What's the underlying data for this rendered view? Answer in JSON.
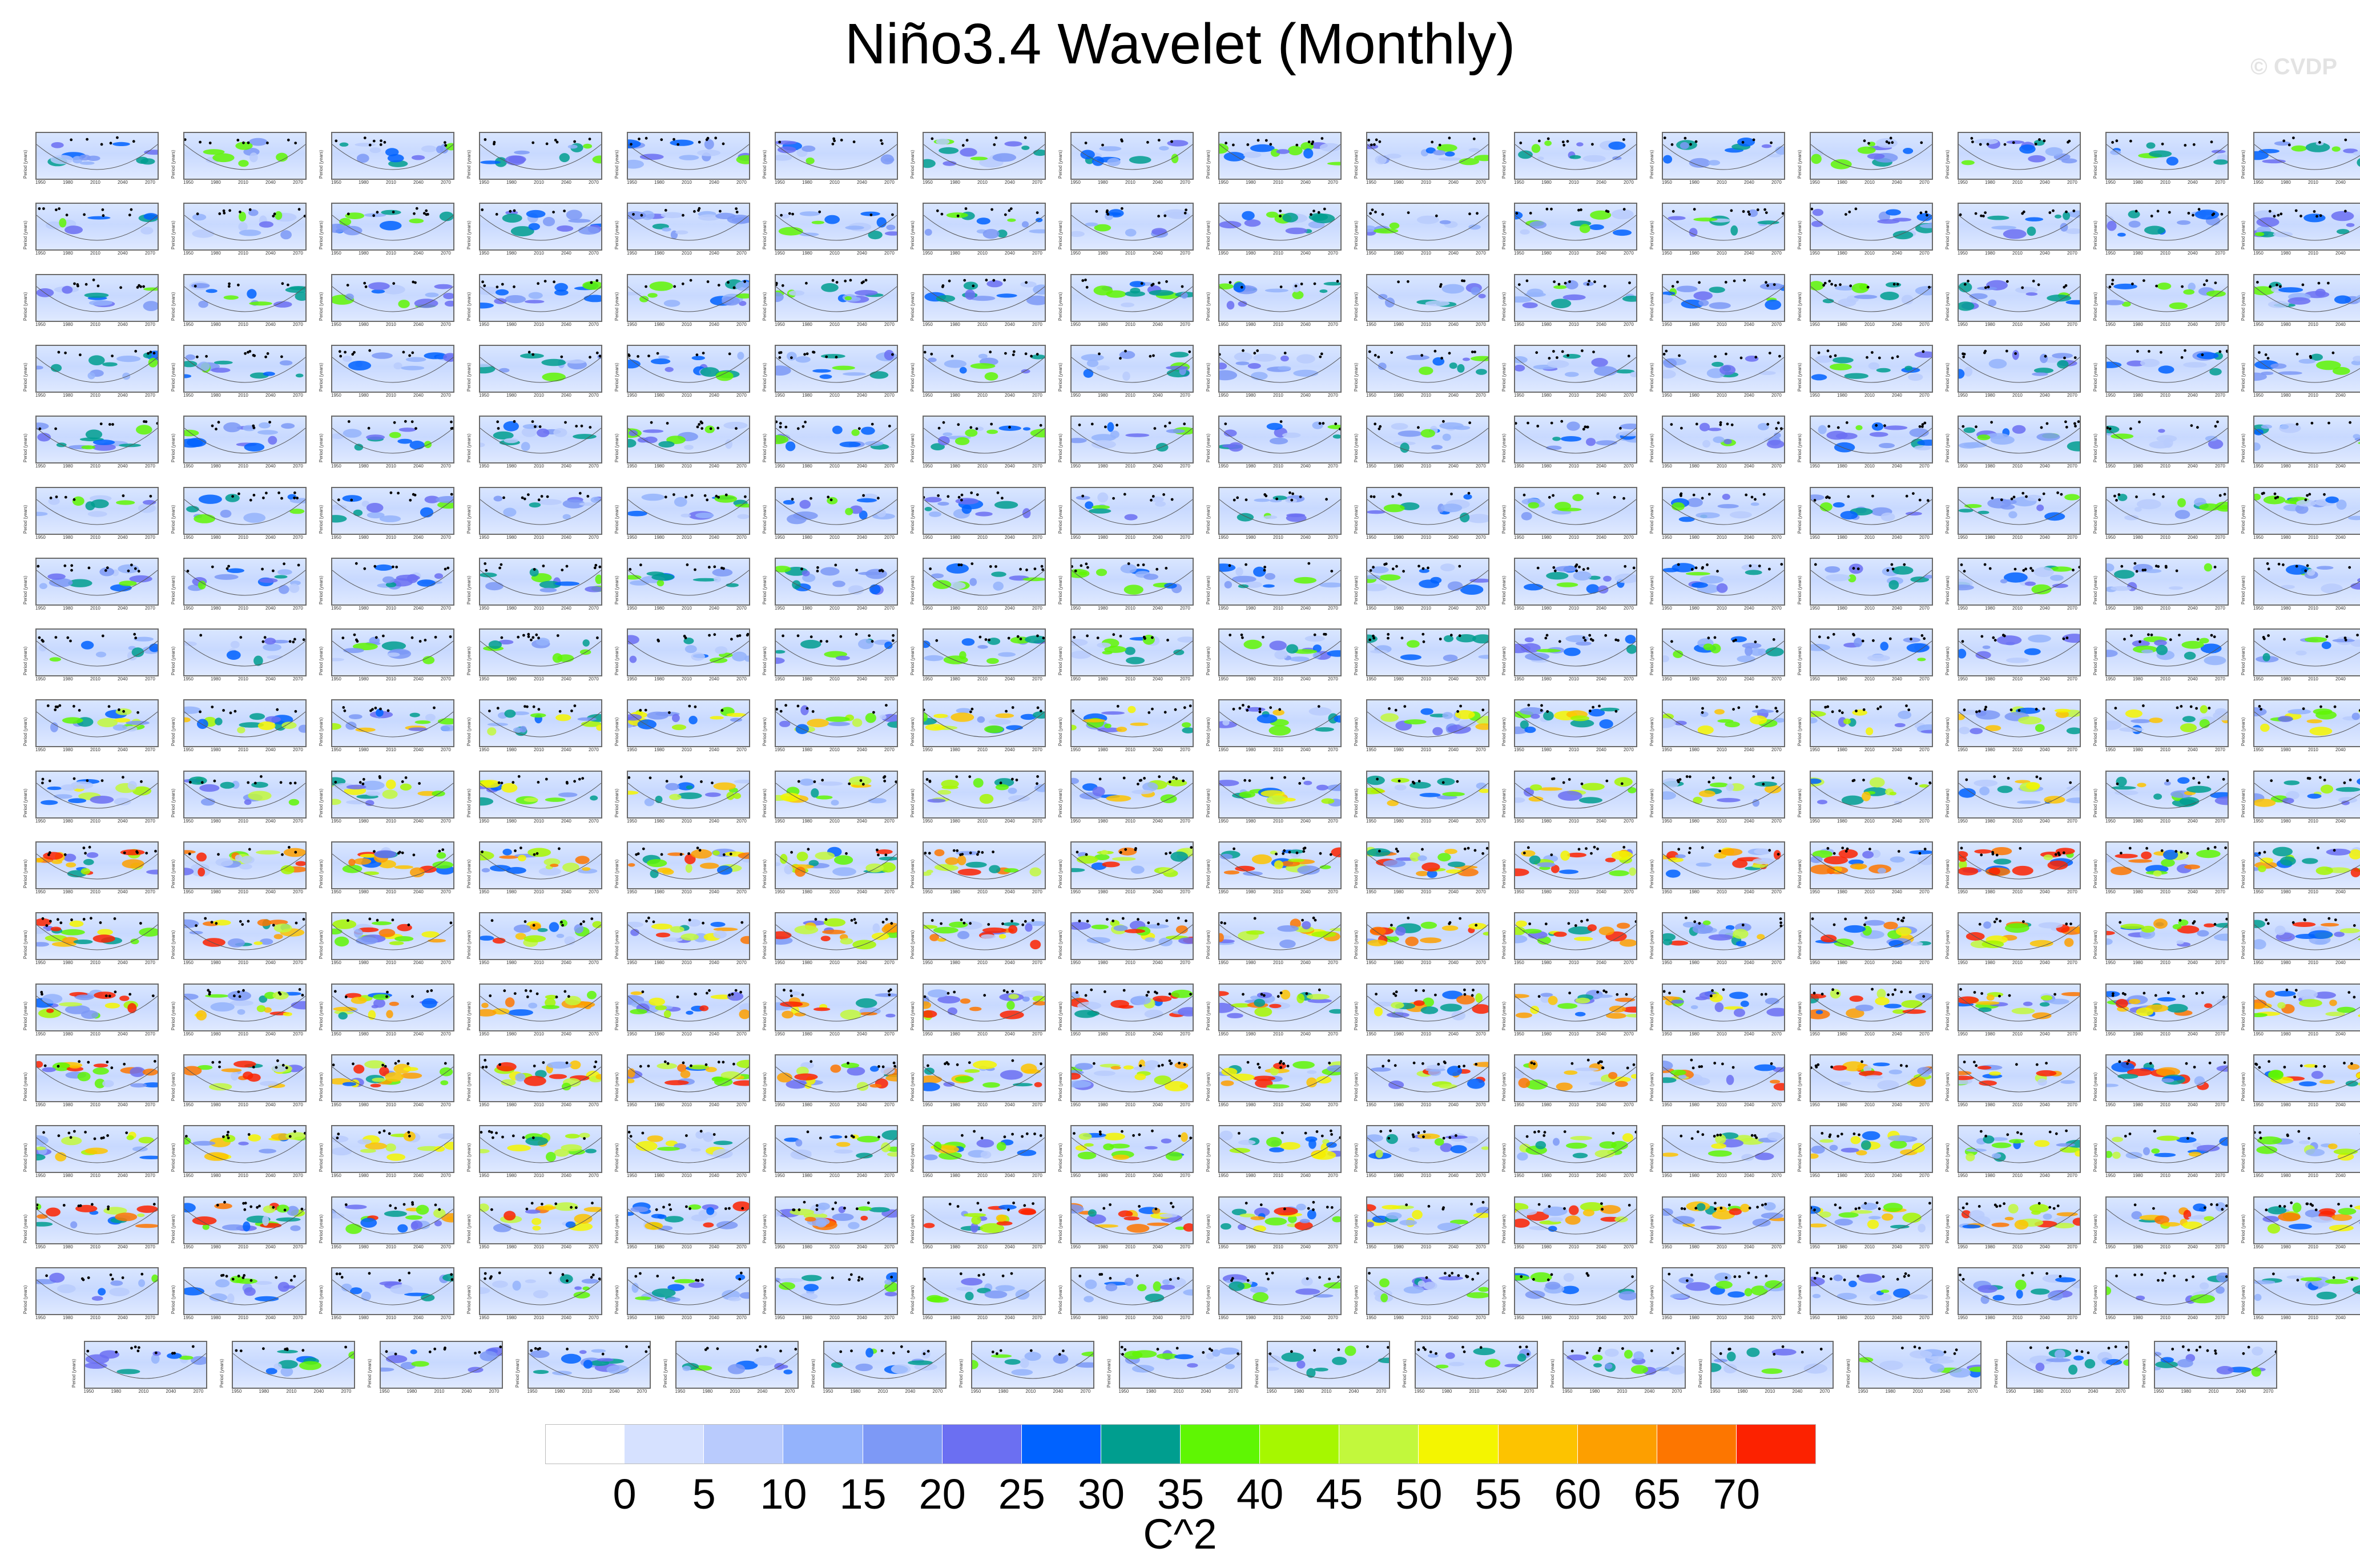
{
  "chart_data": {
    "type": "heatmap",
    "title": "Niño3.4 Wavelet (Monthly)",
    "watermark": "© CVDP",
    "layout": {
      "rows": 18,
      "columns": 16,
      "last_row_panels": 15
    },
    "panel_axis": {
      "ylabel": "Period (years)",
      "x_ticks": [
        "1950",
        "1980",
        "2010",
        "2040",
        "2070"
      ]
    },
    "colorbar": {
      "label": "C^2",
      "ticks": [
        "0",
        "5",
        "10",
        "15",
        "20",
        "25",
        "30",
        "35",
        "40",
        "45",
        "50",
        "55",
        "60",
        "65",
        "70"
      ],
      "colors": [
        "#ffffff",
        "#d6e1ff",
        "#b9cbfd",
        "#94b3fc",
        "#7d99f6",
        "#6b6ff2",
        "#0062ff",
        "#009e8f",
        "#5ff603",
        "#a6f700",
        "#c2f83c",
        "#f4f500",
        "#fdc300",
        "#fd9f00",
        "#fd7600",
        "#fc2200"
      ]
    },
    "panels_intensity_by_row": [
      1,
      1,
      1,
      1,
      1,
      1,
      1,
      1,
      2,
      2,
      3,
      3,
      3,
      3,
      2,
      3,
      1,
      1
    ]
  }
}
